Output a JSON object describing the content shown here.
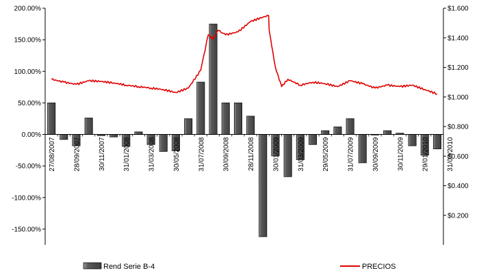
{
  "chart_data": {
    "type": "bar",
    "grid": false,
    "legend_position": "bottom",
    "y_left": {
      "min": -1.75,
      "max": 2.0,
      "ticks": [
        -1.5,
        -1.0,
        -0.5,
        0.0,
        0.5,
        1.0,
        1.5,
        2.0
      ],
      "tick_labels": [
        "-150.00%",
        "-100.00%",
        "-50.00%",
        "0.00%",
        "50.00%",
        "100.00%",
        "150.00%",
        "200.00%"
      ]
    },
    "y_right": {
      "min": 0.0,
      "max": 1.6,
      "ticks": [
        0.2,
        0.4,
        0.6,
        0.8,
        1.0,
        1.2,
        1.4,
        1.6
      ],
      "tick_labels": [
        "$0.200",
        "$0.400",
        "$0.600",
        "$0.800",
        "$1.000",
        "$1.200",
        "$1.400",
        "$1.600"
      ]
    },
    "x_tick_labels": [
      "27/08/2007",
      "28/09/2007",
      "30/11/2007",
      "31/01/2008",
      "31/03/2008",
      "30/05/2008",
      "31/07/2008",
      "30/09/2008",
      "28/11/2008",
      "30/01/2009",
      "31/03/2009",
      "29/05/2009",
      "31/07/2009",
      "30/09/2009",
      "30/11/2009",
      "29/01/2010",
      "31/03/2010"
    ],
    "series": [
      {
        "name": "Rend Serie B-4",
        "type": "bar",
        "axis": "left",
        "color": "#404040",
        "values": [
          0.5,
          -0.08,
          -0.18,
          0.26,
          -0.02,
          -0.04,
          -0.19,
          0.04,
          -0.16,
          -0.27,
          -0.26,
          0.25,
          0.83,
          1.75,
          0.5,
          0.5,
          0.29,
          -1.62,
          -0.34,
          -0.67,
          -0.4,
          -0.16,
          0.06,
          0.12,
          0.25,
          -0.45,
          -0.01,
          0.06,
          0.02,
          -0.18,
          -0.33,
          -0.23
        ]
      },
      {
        "name": "PRECIOS",
        "type": "line",
        "axis": "right",
        "color": "#e00000",
        "points": [
          [
            0,
            1.12
          ],
          [
            1,
            1.1
          ],
          [
            2,
            1.085
          ],
          [
            3,
            1.11
          ],
          [
            4,
            1.105
          ],
          [
            5,
            1.095
          ],
          [
            6,
            1.08
          ],
          [
            7,
            1.07
          ],
          [
            8,
            1.06
          ],
          [
            9,
            1.05
          ],
          [
            10,
            1.03
          ],
          [
            11,
            1.06
          ],
          [
            12,
            1.18
          ],
          [
            12.6,
            1.42
          ],
          [
            13,
            1.39
          ],
          [
            13.4,
            1.45
          ],
          [
            14,
            1.42
          ],
          [
            15,
            1.44
          ],
          [
            16,
            1.51
          ],
          [
            17,
            1.54
          ],
          [
            17.45,
            1.55
          ],
          [
            17.5,
            1.45
          ],
          [
            18,
            1.2
          ],
          [
            18.5,
            1.07
          ],
          [
            19,
            1.12
          ],
          [
            20,
            1.08
          ],
          [
            21,
            1.1
          ],
          [
            22,
            1.09
          ],
          [
            23,
            1.07
          ],
          [
            24,
            1.11
          ],
          [
            25,
            1.09
          ],
          [
            26,
            1.06
          ],
          [
            27,
            1.08
          ],
          [
            28,
            1.07
          ],
          [
            29,
            1.08
          ],
          [
            30,
            1.05
          ],
          [
            31,
            1.02
          ]
        ]
      }
    ]
  }
}
